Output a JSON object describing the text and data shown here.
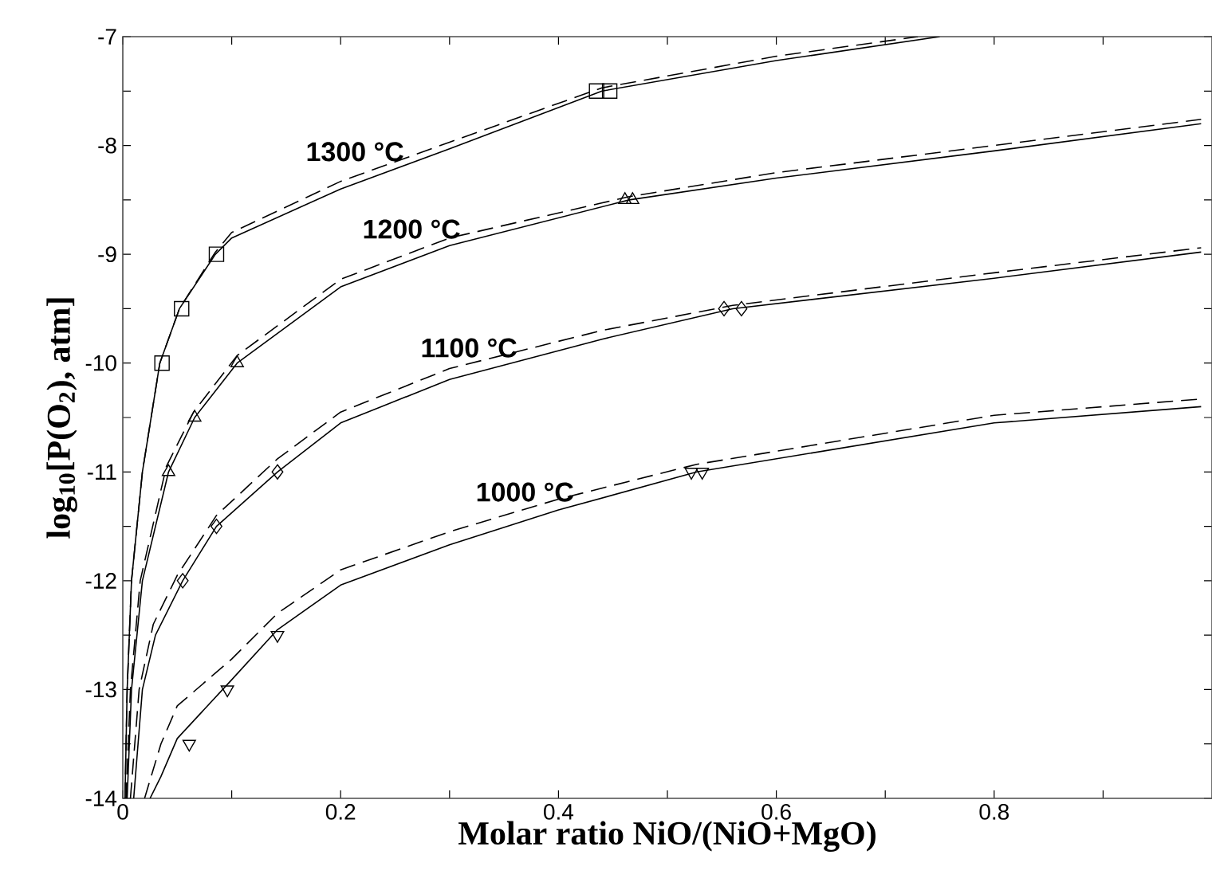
{
  "chart_data": {
    "type": "line",
    "xlabel": "Molar ratio NiO/(NiO+MgO)",
    "ylabel": "log$_{10}$[P(O$_{2}$), atm]",
    "xlim": [
      0,
      1
    ],
    "ylim": [
      -14,
      -7
    ],
    "xticks": [
      0,
      {
        "value": 0.1,
        "label": null
      },
      0.2,
      {
        "value": 0.3,
        "label": null
      },
      0.4,
      {
        "value": 0.5,
        "label": null
      },
      0.6,
      {
        "value": 0.7,
        "label": null
      },
      0.8,
      {
        "value": 0.9,
        "label": null
      }
    ],
    "yticks": [
      -14,
      {
        "value": -13.5,
        "label": null
      },
      -13,
      {
        "value": -12.5,
        "label": null
      },
      -12,
      {
        "value": -11.5,
        "label": null
      },
      -11,
      {
        "value": -10.5,
        "label": null
      },
      -10,
      {
        "value": -9.5,
        "label": null
      },
      -9,
      {
        "value": -8.5,
        "label": null
      },
      -8,
      {
        "value": -7.5,
        "label": null
      },
      -7
    ],
    "grid": false,
    "legend": false,
    "series": [
      {
        "name": "1300 °C",
        "line_style": "solid",
        "color": "#000000",
        "x": [
          0.002,
          0.004,
          0.008,
          0.018,
          0.034,
          0.052,
          0.085,
          0.1,
          0.2,
          0.3,
          0.44,
          0.6,
          0.75
        ],
        "values": [
          -14,
          -13,
          -12,
          -11,
          -10,
          -9.5,
          -9,
          -8.85,
          -8.4,
          -8.03,
          -7.5,
          -7.22,
          -7.0
        ]
      },
      {
        "line_style": "dashed",
        "color": "#000000",
        "x": [
          0.002,
          0.004,
          0.008,
          0.018,
          0.034,
          0.052,
          0.085,
          0.1,
          0.2,
          0.3,
          0.44,
          0.6,
          0.73
        ],
        "values": [
          -14,
          -13,
          -12,
          -11,
          -10,
          -9.5,
          -8.98,
          -8.8,
          -8.33,
          -7.97,
          -7.47,
          -7.18,
          -7.0
        ]
      },
      {
        "name": "1200 °C",
        "line_style": "solid",
        "color": "#000000",
        "x": [
          0.004,
          0.008,
          0.018,
          0.042,
          0.066,
          0.105,
          0.2,
          0.3,
          0.465,
          0.6,
          0.8,
          0.99
        ],
        "values": [
          -14,
          -13,
          -12,
          -11,
          -10.5,
          -10,
          -9.3,
          -8.92,
          -8.5,
          -8.3,
          -8.05,
          -7.8
        ]
      },
      {
        "line_style": "dashed",
        "color": "#000000",
        "x": [
          0.003,
          0.007,
          0.016,
          0.04,
          0.065,
          0.105,
          0.2,
          0.3,
          0.465,
          0.6,
          0.8,
          0.99
        ],
        "values": [
          -14,
          -13,
          -12,
          -10.95,
          -10.45,
          -9.93,
          -9.23,
          -8.85,
          -8.47,
          -8.25,
          -8.0,
          -7.76
        ]
      },
      {
        "name": "1100 °C",
        "line_style": "solid",
        "color": "#000000",
        "x": [
          0.01,
          0.018,
          0.03,
          0.055,
          0.086,
          0.142,
          0.2,
          0.3,
          0.44,
          0.56,
          0.8,
          0.99
        ],
        "values": [
          -14,
          -13,
          -12.5,
          -12,
          -11.5,
          -11,
          -10.55,
          -10.15,
          -9.78,
          -9.5,
          -9.22,
          -8.98
        ]
      },
      {
        "line_style": "dashed",
        "color": "#000000",
        "x": [
          0.007,
          0.015,
          0.028,
          0.05,
          0.086,
          0.142,
          0.2,
          0.3,
          0.44,
          0.56,
          0.8,
          0.99
        ],
        "values": [
          -14,
          -13,
          -12.4,
          -11.95,
          -11.4,
          -10.88,
          -10.45,
          -10.05,
          -9.7,
          -9.47,
          -9.17,
          -8.94
        ]
      },
      {
        "name": "1000 °C",
        "line_style": "solid",
        "color": "#000000",
        "x": [
          0.025,
          0.035,
          0.05,
          0.1,
          0.142,
          0.2,
          0.3,
          0.4,
          0.527,
          0.8,
          0.99
        ],
        "values": [
          -14,
          -13.8,
          -13.45,
          -12.91,
          -12.45,
          -12.04,
          -11.67,
          -11.35,
          -11.0,
          -10.55,
          -10.4
        ]
      },
      {
        "line_style": "dashed",
        "color": "#000000",
        "x": [
          0.02,
          0.035,
          0.05,
          0.1,
          0.142,
          0.2,
          0.3,
          0.4,
          0.527,
          0.8,
          0.99
        ],
        "values": [
          -14,
          -13.5,
          -13.15,
          -12.72,
          -12.3,
          -11.9,
          -11.55,
          -11.25,
          -10.93,
          -10.48,
          -10.33
        ]
      },
      {
        "type": "scatter",
        "marker": "square",
        "color": "#000000",
        "x": [
          0.036,
          0.054,
          0.086,
          0.435,
          0.447
        ],
        "values": [
          -10,
          -9.5,
          -9,
          -7.5,
          -7.5
        ]
      },
      {
        "type": "scatter",
        "marker": "triangle",
        "color": "#000000",
        "x": [
          0.042,
          0.066,
          0.105,
          0.461,
          0.468
        ],
        "values": [
          -11,
          -10.5,
          -10,
          -8.5,
          -8.5
        ]
      },
      {
        "type": "scatter",
        "marker": "diamond",
        "color": "#000000",
        "x": [
          0.055,
          0.086,
          0.142,
          0.552,
          0.568
        ],
        "values": [
          -12,
          -11.5,
          -11,
          -9.5,
          -9.5
        ]
      },
      {
        "type": "scatter",
        "marker": "triangle_down",
        "color": "#000000",
        "x": [
          0.061,
          0.096,
          0.142,
          0.522,
          0.532
        ],
        "values": [
          -13.5,
          -13,
          -12.5,
          -11,
          -11
        ]
      }
    ]
  }
}
